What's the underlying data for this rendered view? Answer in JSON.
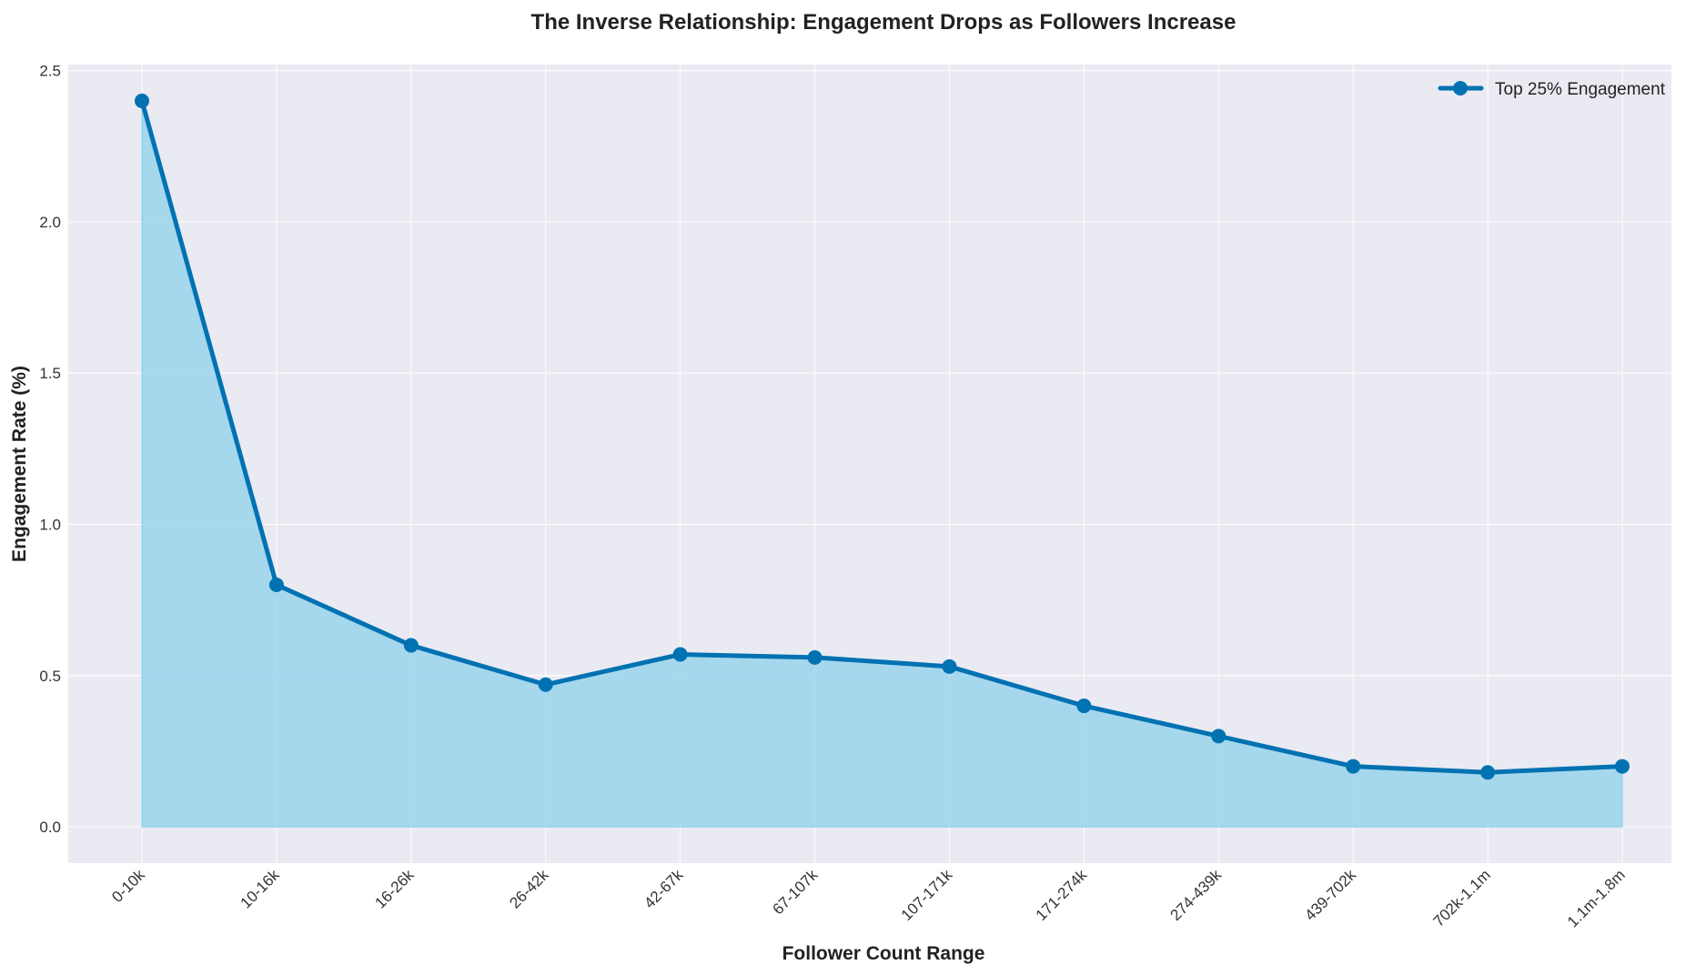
{
  "chart_data": {
    "type": "area",
    "title": "The Inverse Relationship: Engagement Drops as Followers Increase",
    "xlabel": "Follower Count Range",
    "ylabel": "Engagement Rate (%)",
    "categories": [
      "0-10k",
      "10-16k",
      "16-26k",
      "26-42k",
      "42-67k",
      "67-107k",
      "107-171k",
      "171-274k",
      "274-439k",
      "439-702k",
      "702k-1.1m",
      "1.1m-1.8m"
    ],
    "series": [
      {
        "name": "Top 25% Engagement",
        "values": [
          2.4,
          0.8,
          0.6,
          0.47,
          0.57,
          0.56,
          0.53,
          0.4,
          0.3,
          0.2,
          0.18,
          0.2
        ],
        "color": "#0072B2",
        "fill_color": "#87CEEB"
      }
    ],
    "ylim": [
      -0.12,
      2.52
    ],
    "yticks": [
      0.0,
      0.5,
      1.0,
      1.5,
      2.0,
      2.5
    ],
    "ytick_labels": [
      "0.0",
      "0.5",
      "1.0",
      "1.5",
      "2.0",
      "2.5"
    ],
    "grid": true,
    "legend_position": "top-right",
    "background_color": "#EAEAF2"
  }
}
